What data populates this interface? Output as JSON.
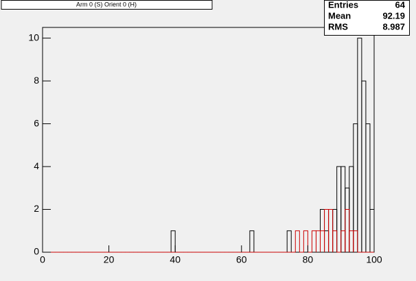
{
  "chart_data": {
    "type": "histogram",
    "title": "Arm 0 (S) Orient 0 (H)",
    "bins": [
      0,
      1.25,
      2.5,
      3.75,
      5,
      6.25,
      7.5,
      8.75,
      10,
      11.25,
      12.5,
      13.75,
      15,
      16.25,
      17.5,
      18.75,
      20,
      21.25,
      22.5,
      23.75,
      25,
      26.25,
      27.5,
      28.75,
      30,
      31.25,
      32.5,
      33.75,
      35,
      36.25,
      37.5,
      38.75,
      40,
      41.25,
      42.5,
      43.75,
      45,
      46.25,
      47.5,
      48.75,
      50,
      51.25,
      52.5,
      53.75,
      55,
      56.25,
      57.5,
      58.75,
      60,
      61.25,
      62.5,
      63.75,
      65,
      66.25,
      67.5,
      68.75,
      70,
      71.25,
      72.5,
      73.75,
      75,
      76.25,
      77.5,
      78.75,
      80,
      81.25,
      82.5,
      83.75,
      85,
      86.25,
      87.5,
      88.75,
      90,
      91.25,
      92.5,
      93.75,
      95,
      96.25,
      97.5,
      98.75,
      100
    ],
    "series": [
      {
        "color": "#000000",
        "values": [
          0,
          0,
          0,
          0,
          0,
          0,
          0,
          0,
          0,
          0,
          0,
          0,
          0,
          0,
          0,
          0,
          0,
          0,
          0,
          0,
          0,
          0,
          0,
          0,
          0,
          0,
          0,
          0,
          0,
          0,
          0,
          1,
          0,
          0,
          0,
          0,
          0,
          0,
          0,
          0,
          0,
          0,
          0,
          0,
          0,
          0,
          0,
          0,
          0,
          0,
          1,
          0,
          0,
          0,
          0,
          0,
          0,
          0,
          0,
          1,
          0,
          0,
          0,
          0,
          0,
          0,
          0,
          2,
          1,
          2,
          2,
          4,
          4,
          3,
          4,
          6,
          10,
          8,
          6,
          2
        ]
      },
      {
        "color": "#cc0000",
        "values": [
          0,
          0,
          0,
          0,
          0,
          0,
          0,
          0,
          0,
          0,
          0,
          0,
          0,
          0,
          0,
          0,
          0,
          0,
          0,
          0,
          0,
          0,
          0,
          0,
          0,
          0,
          0,
          0,
          0,
          0,
          0,
          0,
          0,
          0,
          0,
          0,
          0,
          0,
          0,
          0,
          0,
          0,
          0,
          0,
          0,
          0,
          0,
          0,
          0,
          0,
          0,
          0,
          0,
          0,
          0,
          0,
          0,
          0,
          0,
          0,
          0,
          1,
          0,
          1,
          0,
          1,
          1,
          1,
          2,
          2,
          1,
          0,
          1,
          2,
          1,
          1,
          0,
          0,
          0,
          0
        ]
      }
    ],
    "xlim": [
      0,
      100
    ],
    "xticks": [
      0,
      20,
      40,
      60,
      80,
      100
    ],
    "ylim": [
      0,
      10.5
    ],
    "yticks": [
      0,
      2,
      4,
      6,
      8,
      10
    ],
    "stats": {
      "labels": [
        "Entries",
        "Mean",
        "RMS"
      ],
      "values": [
        64,
        92.19,
        8.987
      ]
    }
  }
}
